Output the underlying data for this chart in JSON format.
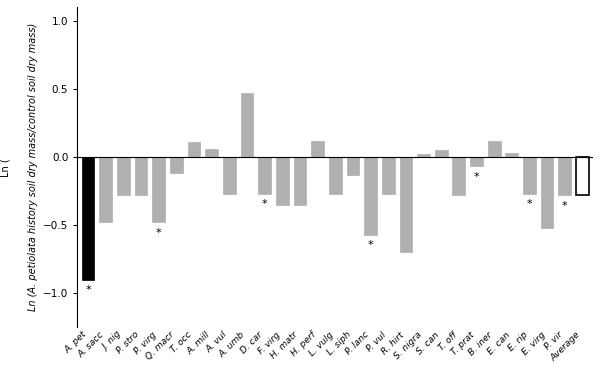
{
  "categories": [
    "A. pet",
    "A. sacc",
    "J. nig",
    "P. stro",
    "P. virg",
    "Q. macr",
    "T. occ",
    "A. mill",
    "A. vul",
    "A. umb",
    "D. car",
    "F. virg",
    "H. matr",
    "H. perf",
    "L. vulg",
    "L. siph",
    "P. lanc",
    "P. vul",
    "R. hirt",
    "S. nigra",
    "S. can",
    "T. off",
    "T. prat",
    "B. iner",
    "E. can",
    "E. rip",
    "E. virg",
    "P. vir",
    "Average"
  ],
  "values": [
    -0.9,
    -0.48,
    -0.28,
    -0.28,
    -0.48,
    -0.12,
    0.11,
    0.06,
    -0.27,
    0.47,
    -0.27,
    -0.35,
    -0.35,
    0.12,
    -0.27,
    -0.13,
    -0.57,
    -0.27,
    -0.7,
    0.02,
    0.05,
    -0.28,
    -0.07,
    0.12,
    0.03,
    -0.27,
    -0.52,
    -0.28,
    -0.28
  ],
  "sig": [
    true,
    false,
    false,
    false,
    true,
    false,
    false,
    false,
    false,
    false,
    true,
    false,
    false,
    false,
    false,
    false,
    true,
    false,
    false,
    false,
    false,
    false,
    true,
    false,
    false,
    true,
    false,
    true,
    false
  ],
  "bar_colors": [
    "#000000",
    "#b0b0b0",
    "#b0b0b0",
    "#b0b0b0",
    "#b0b0b0",
    "#b0b0b0",
    "#b0b0b0",
    "#b0b0b0",
    "#b0b0b0",
    "#b0b0b0",
    "#b0b0b0",
    "#b0b0b0",
    "#b0b0b0",
    "#b0b0b0",
    "#b0b0b0",
    "#b0b0b0",
    "#b0b0b0",
    "#b0b0b0",
    "#b0b0b0",
    "#b0b0b0",
    "#b0b0b0",
    "#b0b0b0",
    "#b0b0b0",
    "#b0b0b0",
    "#b0b0b0",
    "#b0b0b0",
    "#b0b0b0",
    "#b0b0b0",
    "#ffffff"
  ],
  "ylabel_plain": "Ln (A. petiolata",
  "ylabel_italic": "A. petiolata",
  "ylabel_full": "Ln (",
  "ylabel_suffix": " history soil dry mass/control soil dry mass)",
  "ylim": [
    -1.25,
    1.1
  ],
  "yticks": [
    -1.0,
    -0.5,
    0.0,
    0.5,
    1.0
  ],
  "bar_edgecolor_gray": "#b0b0b0",
  "bar_edgecolor_black": "#000000",
  "fig_width": 6.0,
  "fig_height": 3.7,
  "ylabel_fontsize": 7.0,
  "xlabel_fontsize": 6.5,
  "ytick_fontsize": 7.5
}
